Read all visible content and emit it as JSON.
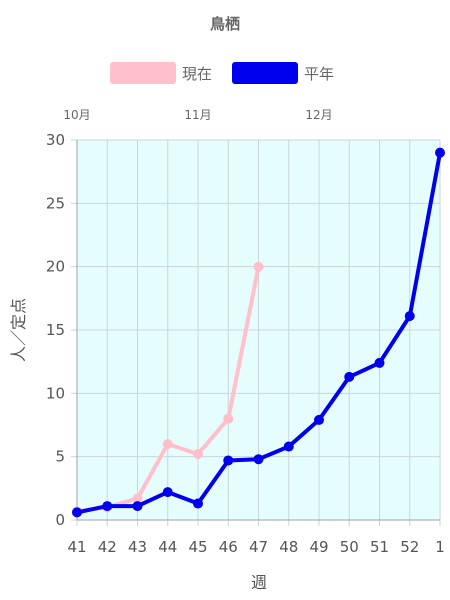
{
  "chart_data": {
    "type": "line",
    "title": "鳥栖",
    "xlabel": "週",
    "ylabel": "人／定点",
    "categories": [
      "41",
      "42",
      "43",
      "44",
      "45",
      "46",
      "47",
      "48",
      "49",
      "50",
      "51",
      "52",
      "1"
    ],
    "months": [
      {
        "label": "10月",
        "week": "41"
      },
      {
        "label": "11月",
        "week": "45"
      },
      {
        "label": "12月",
        "week": "49"
      }
    ],
    "ylim": [
      0,
      30
    ],
    "yticks": [
      0,
      5,
      10,
      15,
      20,
      25,
      30
    ],
    "grid": true,
    "legend_position": "top",
    "plot_background": "#e6fdfe",
    "series": [
      {
        "name": "現在",
        "color": "#ffc0cb",
        "values": [
          0.7,
          1.0,
          1.7,
          6.0,
          5.2,
          8.0,
          20.0,
          null,
          null,
          null,
          null,
          null,
          null
        ]
      },
      {
        "name": "平年",
        "color": "#0000ee",
        "values": [
          0.6,
          1.1,
          1.1,
          2.2,
          1.3,
          4.7,
          4.8,
          5.8,
          7.9,
          11.3,
          12.4,
          16.1,
          29.0
        ]
      }
    ]
  }
}
